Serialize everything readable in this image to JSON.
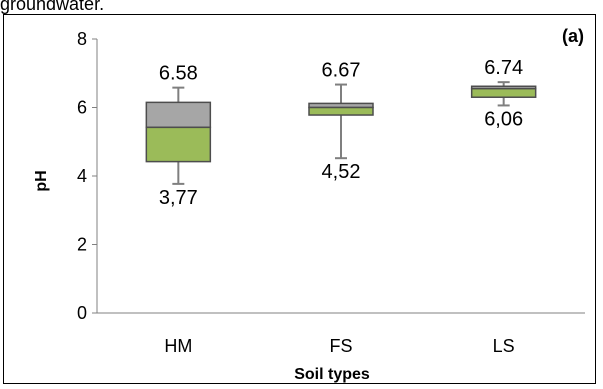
{
  "caption": {
    "text": "groundwater."
  },
  "chart_data": {
    "type": "box",
    "panel_label": "(a)",
    "xlabel": "Soil types",
    "ylabel": "pH",
    "ylim": [
      0,
      8
    ],
    "yticks": [
      0,
      2,
      4,
      6,
      8
    ],
    "grid": false,
    "colors": {
      "upper_box": "#a6a6a6",
      "lower_box": "#9bbb59",
      "border": "#4d4d4d",
      "whisker": "#7f7f7f"
    },
    "categories": [
      "HM",
      "FS",
      "LS"
    ],
    "boxes": [
      {
        "category": "HM",
        "min": 3.77,
        "q1": 4.42,
        "median": 5.42,
        "q3": 6.15,
        "max": 6.58,
        "max_label": "6.58",
        "min_label": "3,77"
      },
      {
        "category": "FS",
        "min": 4.52,
        "q1": 5.78,
        "median": 6.0,
        "q3": 6.12,
        "max": 6.67,
        "max_label": "6.67",
        "min_label": "4,52"
      },
      {
        "category": "LS",
        "min": 6.06,
        "q1": 6.3,
        "median": 6.55,
        "q3": 6.62,
        "max": 6.74,
        "max_label": "6.74",
        "min_label": "6,06"
      }
    ]
  }
}
